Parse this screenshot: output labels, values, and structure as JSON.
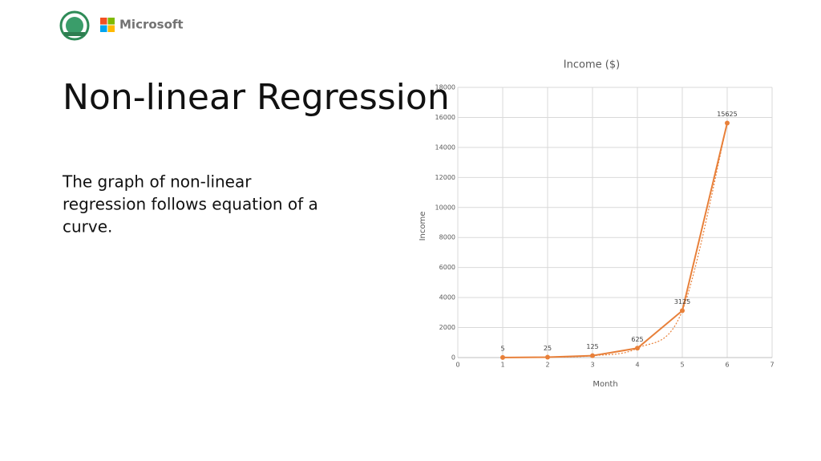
{
  "slide": {
    "brand": "Microsoft",
    "title": "Non-linear Regression",
    "body_lines": [
      "The graph of non-linear",
      "regression follows equation of a",
      "curve."
    ]
  },
  "chart_data": {
    "type": "line",
    "title": "Income ($)",
    "x_label": "Month",
    "y_label": "Income",
    "x": [
      1,
      2,
      3,
      4,
      5,
      6
    ],
    "series": [
      {
        "color": "#e8803a",
        "values": [
          5,
          25,
          125,
          625,
          3125,
          15625
        ]
      }
    ],
    "xlim": [
      0,
      7
    ],
    "xticks": [
      0,
      1,
      2,
      3,
      4,
      5,
      6,
      7
    ],
    "ylim": [
      0,
      18000
    ],
    "yticks": [
      0,
      2000,
      4000,
      6000,
      8000,
      10000,
      12000,
      14000,
      16000,
      18000
    ],
    "grid": true,
    "data_labels": true,
    "markers": true,
    "trendline": true
  }
}
